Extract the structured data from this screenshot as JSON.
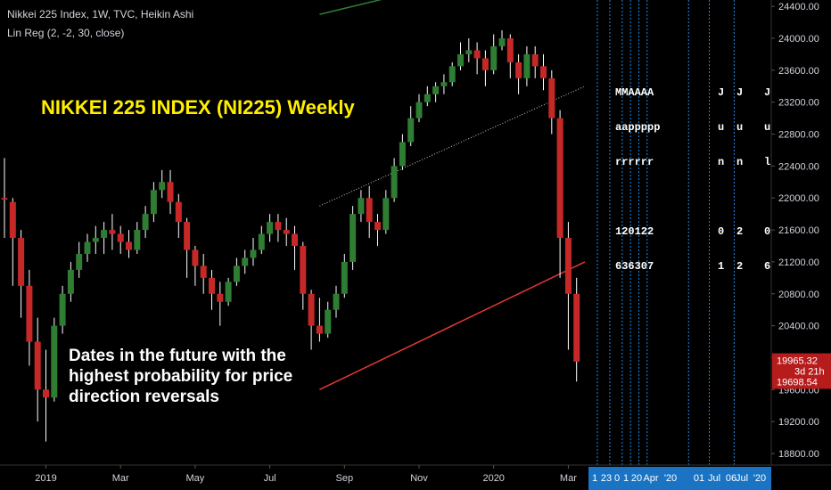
{
  "header": {
    "line1": "Nikkei 225 Index, 1W, TVC, Heikin Ashi",
    "line2": "Lin Reg (2, -2, 30, close)"
  },
  "annotations": {
    "title": "NIKKEI 225 INDEX (NI225) Weekly",
    "note_lines": [
      "Dates in the future with the",
      "highest probability for price",
      "direction reversals"
    ]
  },
  "vertical_labels": {
    "cluster_a": [
      "MMAAAA",
      "aappppp",
      "rrrrrr",
      "",
      "120122",
      "636307"
    ],
    "col_jun1": [
      "J",
      "u",
      "n",
      "",
      "0",
      "1"
    ],
    "col_jun2": [
      "J",
      "u",
      "n",
      "",
      "2",
      "2"
    ],
    "col_jul": [
      "J",
      "u",
      "l",
      "",
      "0",
      "6"
    ]
  },
  "colors": {
    "background": "#000000",
    "bull": "#2e7d32",
    "bear": "#c62828",
    "wick": "#ffffff",
    "title": "#ffee00",
    "price_label_bg": "#b71c1c",
    "time_highlight": "#1e88e5",
    "event_line": "#1e88e5",
    "regression_upper": "#cccccc",
    "regression_lower": "#e53935",
    "regression_green": "#2e7d32"
  },
  "chart_data": {
    "type": "candlestick",
    "style": "Heikin Ashi",
    "interval": "1W",
    "y_ticks": [
      18800,
      19200,
      19600,
      20000,
      20400,
      20800,
      21200,
      21600,
      22000,
      22400,
      22800,
      23200,
      23600,
      24000,
      24400
    ],
    "y_tick_labels": [
      "18800.00",
      "19200.00",
      "19600.00",
      "20000.00",
      "20400.00",
      "20800.00",
      "21200.00",
      "21600.00",
      "22000.00",
      "22400.00",
      "22800.00",
      "23200.00",
      "23600.00",
      "24000.00",
      "24400.00"
    ],
    "x_tick_labels": [
      "2019",
      "Mar",
      "May",
      "Jul",
      "Sep",
      "Nov",
      "2020",
      "Mar"
    ],
    "x_tick_index": [
      5,
      14,
      23,
      32,
      41,
      50,
      59,
      68
    ],
    "future_labels": [
      "1",
      "23",
      "0",
      "1",
      "20",
      "Apr",
      "'20",
      "01",
      "Jul",
      "06",
      "Jul",
      "'20"
    ],
    "price_labels": [
      {
        "text": "19965.32",
        "value": 19965.32
      },
      {
        "text": "3d 21h",
        "value": 19830
      },
      {
        "text": "19698.54",
        "value": 19698.54
      }
    ],
    "event_lines_index": [
      71.5,
      73,
      74.5,
      75.5,
      76.5,
      77.5,
      82.5,
      85,
      88
    ],
    "regression_lines": {
      "upper": {
        "from": [
          38,
          21900
        ],
        "to": [
          70,
          23400
        ]
      },
      "lower": {
        "from": [
          38,
          19600
        ],
        "to": [
          70,
          21200
        ]
      },
      "green": {
        "from": [
          38,
          24300
        ],
        "to": [
          46,
          24500
        ]
      }
    },
    "candles": [
      [
        22000,
        21980,
        22500,
        21500
      ],
      [
        21950,
        21500,
        22000,
        20900
      ],
      [
        21500,
        20900,
        21600,
        20500
      ],
      [
        20900,
        20200,
        21100,
        19900
      ],
      [
        20200,
        19600,
        20500,
        19200
      ],
      [
        19600,
        19500,
        20100,
        18950
      ],
      [
        19500,
        20400,
        20500,
        19450
      ],
      [
        20400,
        20800,
        20900,
        20300
      ],
      [
        20800,
        21100,
        21200,
        20700
      ],
      [
        21100,
        21300,
        21450,
        21000
      ],
      [
        21300,
        21450,
        21550,
        21200
      ],
      [
        21450,
        21500,
        21650,
        21300
      ],
      [
        21500,
        21600,
        21700,
        21300
      ],
      [
        21600,
        21550,
        21800,
        21350
      ],
      [
        21550,
        21450,
        21650,
        21300
      ],
      [
        21450,
        21350,
        21600,
        21250
      ],
      [
        21350,
        21600,
        21700,
        21300
      ],
      [
        21600,
        21800,
        21900,
        21500
      ],
      [
        21800,
        22100,
        22200,
        21700
      ],
      [
        22100,
        22200,
        22350,
        22000
      ],
      [
        22200,
        21950,
        22350,
        21800
      ],
      [
        21950,
        21700,
        22050,
        21500
      ],
      [
        21700,
        21350,
        21750,
        21000
      ],
      [
        21350,
        21150,
        21400,
        20900
      ],
      [
        21150,
        21000,
        21300,
        20800
      ],
      [
        21000,
        20800,
        21100,
        20600
      ],
      [
        20800,
        20700,
        20950,
        20400
      ],
      [
        20700,
        20950,
        21000,
        20650
      ],
      [
        20950,
        21150,
        21250,
        20900
      ],
      [
        21150,
        21250,
        21350,
        21050
      ],
      [
        21250,
        21350,
        21500,
        21150
      ],
      [
        21350,
        21550,
        21650,
        21300
      ],
      [
        21550,
        21700,
        21800,
        21450
      ],
      [
        21700,
        21600,
        21800,
        21450
      ],
      [
        21600,
        21550,
        21750,
        21400
      ],
      [
        21550,
        21400,
        21650,
        21100
      ],
      [
        21400,
        20800,
        21450,
        20600
      ],
      [
        20800,
        20400,
        20850,
        20100
      ],
      [
        20400,
        20300,
        20750,
        20200
      ],
      [
        20300,
        20600,
        20700,
        20250
      ],
      [
        20600,
        20800,
        20900,
        20500
      ],
      [
        20800,
        21200,
        21300,
        20750
      ],
      [
        21200,
        21800,
        21900,
        21100
      ],
      [
        21800,
        22000,
        22100,
        21700
      ],
      [
        22000,
        21700,
        22150,
        21500
      ],
      [
        21700,
        21600,
        21800,
        21400
      ],
      [
        21600,
        22000,
        22100,
        21550
      ],
      [
        22000,
        22400,
        22500,
        21950
      ],
      [
        22400,
        22700,
        22800,
        22350
      ],
      [
        22700,
        23000,
        23150,
        22650
      ],
      [
        23000,
        23200,
        23300,
        22950
      ],
      [
        23200,
        23300,
        23400,
        23150
      ],
      [
        23300,
        23400,
        23450,
        23200
      ],
      [
        23400,
        23450,
        23550,
        23300
      ],
      [
        23450,
        23650,
        23700,
        23400
      ],
      [
        23650,
        23800,
        23950,
        23600
      ],
      [
        23800,
        23850,
        24000,
        23700
      ],
      [
        23850,
        23750,
        23950,
        23550
      ],
      [
        23750,
        23600,
        23850,
        23400
      ],
      [
        23600,
        23900,
        24050,
        23550
      ],
      [
        23900,
        24000,
        24100,
        23850
      ],
      [
        24000,
        23700,
        24050,
        23500
      ],
      [
        23700,
        23500,
        23800,
        23300
      ],
      [
        23500,
        23800,
        23900,
        23400
      ],
      [
        23800,
        23650,
        23900,
        23500
      ],
      [
        23650,
        23500,
        23800,
        23350
      ],
      [
        23500,
        23000,
        23600,
        22800
      ],
      [
        23000,
        21500,
        23100,
        21000
      ],
      [
        21500,
        20800,
        21700,
        20100
      ],
      [
        20800,
        19950,
        21000,
        19700
      ]
    ]
  }
}
